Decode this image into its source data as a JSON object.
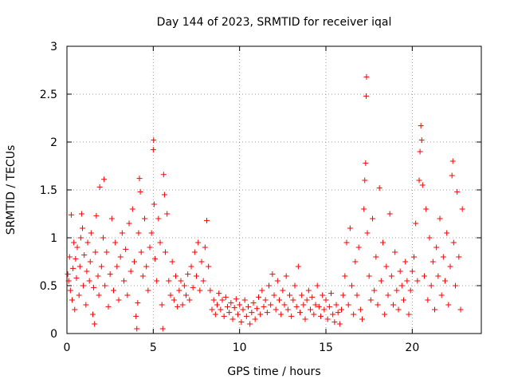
{
  "chart_data": {
    "type": "scatter",
    "title": "Day 144 of 2023, SRMTID for receiver iqal",
    "xlabel": "GPS time / hours",
    "ylabel": "SRMTID / TECUs",
    "xlim": [
      0,
      24
    ],
    "ylim": [
      0,
      3
    ],
    "xticks": [
      0,
      5,
      10,
      15,
      20
    ],
    "xtick_labels": [
      "0",
      "5",
      "10",
      "15",
      "20"
    ],
    "yticks": [
      0,
      0.5,
      1,
      1.5,
      2,
      2.5,
      3
    ],
    "ytick_labels": [
      "0",
      "0.5",
      "1",
      "1.5",
      "2",
      "2.5",
      "3"
    ],
    "grid": true,
    "marker": "+",
    "color": "#ff0000",
    "series": [
      {
        "name": "SRMTID",
        "points": [
          [
            0.05,
            0.62
          ],
          [
            0.1,
            0.55
          ],
          [
            0.15,
            0.8
          ],
          [
            0.2,
            0.45
          ],
          [
            0.25,
            1.24
          ],
          [
            0.3,
            0.35
          ],
          [
            0.35,
            0.68
          ],
          [
            0.4,
            0.95
          ],
          [
            0.45,
            0.25
          ],
          [
            0.5,
            0.78
          ],
          [
            0.55,
            0.58
          ],
          [
            0.6,
            0.9
          ],
          [
            0.7,
            0.4
          ],
          [
            0.75,
            0.7
          ],
          [
            0.8,
            1.0
          ],
          [
            0.85,
            1.25
          ],
          [
            0.9,
            1.1
          ],
          [
            0.95,
            0.5
          ],
          [
            1.0,
            0.82
          ],
          [
            1.1,
            0.3
          ],
          [
            1.15,
            0.65
          ],
          [
            1.2,
            0.95
          ],
          [
            1.3,
            0.55
          ],
          [
            1.35,
            0.75
          ],
          [
            1.4,
            1.05
          ],
          [
            1.5,
            0.2
          ],
          [
            1.55,
            0.48
          ],
          [
            1.6,
            0.1
          ],
          [
            1.65,
            0.85
          ],
          [
            1.7,
            1.23
          ],
          [
            1.8,
            0.6
          ],
          [
            1.85,
            0.4
          ],
          [
            1.9,
            1.53
          ],
          [
            2.0,
            0.7
          ],
          [
            2.1,
            1.0
          ],
          [
            2.15,
            1.61
          ],
          [
            2.2,
            0.5
          ],
          [
            2.3,
            0.85
          ],
          [
            2.4,
            0.28
          ],
          [
            2.5,
            0.62
          ],
          [
            2.6,
            1.2
          ],
          [
            2.7,
            0.45
          ],
          [
            2.8,
            0.95
          ],
          [
            2.9,
            0.7
          ],
          [
            3.0,
            0.35
          ],
          [
            3.1,
            0.8
          ],
          [
            3.2,
            1.05
          ],
          [
            3.3,
            0.55
          ],
          [
            3.4,
            0.88
          ],
          [
            3.5,
            0.4
          ],
          [
            3.6,
            1.15
          ],
          [
            3.7,
            0.65
          ],
          [
            3.8,
            1.3
          ],
          [
            3.9,
            0.75
          ],
          [
            4.0,
            0.18
          ],
          [
            4.05,
            0.05
          ],
          [
            4.1,
            0.32
          ],
          [
            4.15,
            1.05
          ],
          [
            4.2,
            1.62
          ],
          [
            4.25,
            1.48
          ],
          [
            4.3,
            0.85
          ],
          [
            4.4,
            0.6
          ],
          [
            4.5,
            1.2
          ],
          [
            4.6,
            0.7
          ],
          [
            4.7,
            0.45
          ],
          [
            4.8,
            0.9
          ],
          [
            4.9,
            1.05
          ],
          [
            5.0,
            1.92
          ],
          [
            5.02,
            2.02
          ],
          [
            5.05,
            1.35
          ],
          [
            5.1,
            0.78
          ],
          [
            5.2,
            0.55
          ],
          [
            5.3,
            1.2
          ],
          [
            5.4,
            0.95
          ],
          [
            5.5,
            0.3
          ],
          [
            5.55,
            0.05
          ],
          [
            5.6,
            1.66
          ],
          [
            5.65,
            1.45
          ],
          [
            5.7,
            0.85
          ],
          [
            5.8,
            1.25
          ],
          [
            5.9,
            0.55
          ],
          [
            6.0,
            0.4
          ],
          [
            6.1,
            0.75
          ],
          [
            6.2,
            0.35
          ],
          [
            6.3,
            0.6
          ],
          [
            6.4,
            0.28
          ],
          [
            6.5,
            0.45
          ],
          [
            6.6,
            0.55
          ],
          [
            6.7,
            0.3
          ],
          [
            6.8,
            0.5
          ],
          [
            6.9,
            0.4
          ],
          [
            7.0,
            0.62
          ],
          [
            7.1,
            0.35
          ],
          [
            7.2,
            0.7
          ],
          [
            7.3,
            0.48
          ],
          [
            7.4,
            0.85
          ],
          [
            7.5,
            0.6
          ],
          [
            7.6,
            0.95
          ],
          [
            7.7,
            0.45
          ],
          [
            7.8,
            0.75
          ],
          [
            7.9,
            0.55
          ],
          [
            8.0,
            0.9
          ],
          [
            8.1,
            1.18
          ],
          [
            8.2,
            0.7
          ],
          [
            8.3,
            0.45
          ],
          [
            8.4,
            0.25
          ],
          [
            8.5,
            0.35
          ],
          [
            8.6,
            0.2
          ],
          [
            8.7,
            0.3
          ],
          [
            8.8,
            0.42
          ],
          [
            8.9,
            0.25
          ],
          [
            9.0,
            0.35
          ],
          [
            9.1,
            0.18
          ],
          [
            9.2,
            0.38
          ],
          [
            9.3,
            0.28
          ],
          [
            9.4,
            0.22
          ],
          [
            9.5,
            0.32
          ],
          [
            9.6,
            0.15
          ],
          [
            9.7,
            0.27
          ],
          [
            9.8,
            0.36
          ],
          [
            9.9,
            0.2
          ],
          [
            10.0,
            0.3
          ],
          [
            10.1,
            0.12
          ],
          [
            10.2,
            0.25
          ],
          [
            10.3,
            0.35
          ],
          [
            10.4,
            0.18
          ],
          [
            10.5,
            0.28
          ],
          [
            10.6,
            0.1
          ],
          [
            10.7,
            0.22
          ],
          [
            10.8,
            0.32
          ],
          [
            10.9,
            0.15
          ],
          [
            11.0,
            0.26
          ],
          [
            11.1,
            0.38
          ],
          [
            11.2,
            0.2
          ],
          [
            11.3,
            0.45
          ],
          [
            11.4,
            0.28
          ],
          [
            11.5,
            0.35
          ],
          [
            11.6,
            0.22
          ],
          [
            11.7,
            0.5
          ],
          [
            11.8,
            0.3
          ],
          [
            11.9,
            0.62
          ],
          [
            12.0,
            0.4
          ],
          [
            12.1,
            0.25
          ],
          [
            12.2,
            0.55
          ],
          [
            12.3,
            0.35
          ],
          [
            12.4,
            0.2
          ],
          [
            12.5,
            0.45
          ],
          [
            12.6,
            0.3
          ],
          [
            12.7,
            0.6
          ],
          [
            12.8,
            0.25
          ],
          [
            12.9,
            0.4
          ],
          [
            13.0,
            0.18
          ],
          [
            13.1,
            0.35
          ],
          [
            13.2,
            0.5
          ],
          [
            13.3,
            0.28
          ],
          [
            13.4,
            0.7
          ],
          [
            13.5,
            0.22
          ],
          [
            13.6,
            0.4
          ],
          [
            13.7,
            0.3
          ],
          [
            13.8,
            0.15
          ],
          [
            13.9,
            0.35
          ],
          [
            14.0,
            0.45
          ],
          [
            14.1,
            0.25
          ],
          [
            14.2,
            0.38
          ],
          [
            14.3,
            0.2
          ],
          [
            14.4,
            0.3
          ],
          [
            14.5,
            0.5
          ],
          [
            14.6,
            0.28
          ],
          [
            14.7,
            0.18
          ],
          [
            14.8,
            0.4
          ],
          [
            14.9,
            0.25
          ],
          [
            15.0,
            0.35
          ],
          [
            15.1,
            0.15
          ],
          [
            15.2,
            0.28
          ],
          [
            15.3,
            0.42
          ],
          [
            15.4,
            0.2
          ],
          [
            15.5,
            0.12
          ],
          [
            15.6,
            0.3
          ],
          [
            15.7,
            0.22
          ],
          [
            15.8,
            0.1
          ],
          [
            15.9,
            0.25
          ],
          [
            16.0,
            0.4
          ],
          [
            16.1,
            0.6
          ],
          [
            16.2,
            0.95
          ],
          [
            16.3,
            0.3
          ],
          [
            16.4,
            1.1
          ],
          [
            16.5,
            0.5
          ],
          [
            16.6,
            0.2
          ],
          [
            16.7,
            0.75
          ],
          [
            16.8,
            0.4
          ],
          [
            16.9,
            0.9
          ],
          [
            17.0,
            0.25
          ],
          [
            17.1,
            0.15
          ],
          [
            17.2,
            1.3
          ],
          [
            17.25,
            1.6
          ],
          [
            17.3,
            1.78
          ],
          [
            17.33,
            2.48
          ],
          [
            17.35,
            2.68
          ],
          [
            17.4,
            1.05
          ],
          [
            17.5,
            0.6
          ],
          [
            17.6,
            0.35
          ],
          [
            17.7,
            1.2
          ],
          [
            17.8,
            0.45
          ],
          [
            17.9,
            0.8
          ],
          [
            18.0,
            0.3
          ],
          [
            18.1,
            1.52
          ],
          [
            18.2,
            0.55
          ],
          [
            18.3,
            0.95
          ],
          [
            18.4,
            0.2
          ],
          [
            18.5,
            0.7
          ],
          [
            18.6,
            0.4
          ],
          [
            18.7,
            1.25
          ],
          [
            18.8,
            0.6
          ],
          [
            18.9,
            0.3
          ],
          [
            19.0,
            0.85
          ],
          [
            19.1,
            0.45
          ],
          [
            19.2,
            0.25
          ],
          [
            19.3,
            0.65
          ],
          [
            19.4,
            0.5
          ],
          [
            19.5,
            0.35
          ],
          [
            19.6,
            0.75
          ],
          [
            19.7,
            0.55
          ],
          [
            19.8,
            0.2
          ],
          [
            19.9,
            0.45
          ],
          [
            20.0,
            0.65
          ],
          [
            20.1,
            0.8
          ],
          [
            20.2,
            1.15
          ],
          [
            20.3,
            0.55
          ],
          [
            20.4,
            1.6
          ],
          [
            20.45,
            1.9
          ],
          [
            20.5,
            2.17
          ],
          [
            20.55,
            2.02
          ],
          [
            20.6,
            1.55
          ],
          [
            20.7,
            0.6
          ],
          [
            20.8,
            1.3
          ],
          [
            20.9,
            0.35
          ],
          [
            21.0,
            1.0
          ],
          [
            21.1,
            0.5
          ],
          [
            21.2,
            0.75
          ],
          [
            21.3,
            0.25
          ],
          [
            21.4,
            0.9
          ],
          [
            21.5,
            0.6
          ],
          [
            21.6,
            1.2
          ],
          [
            21.7,
            0.4
          ],
          [
            21.8,
            0.8
          ],
          [
            21.9,
            0.55
          ],
          [
            22.0,
            1.05
          ],
          [
            22.1,
            0.3
          ],
          [
            22.2,
            0.7
          ],
          [
            22.3,
            1.65
          ],
          [
            22.35,
            1.8
          ],
          [
            22.4,
            0.95
          ],
          [
            22.5,
            0.5
          ],
          [
            22.6,
            1.48
          ],
          [
            22.7,
            0.8
          ],
          [
            22.8,
            0.25
          ],
          [
            22.9,
            1.3
          ]
        ]
      }
    ]
  }
}
